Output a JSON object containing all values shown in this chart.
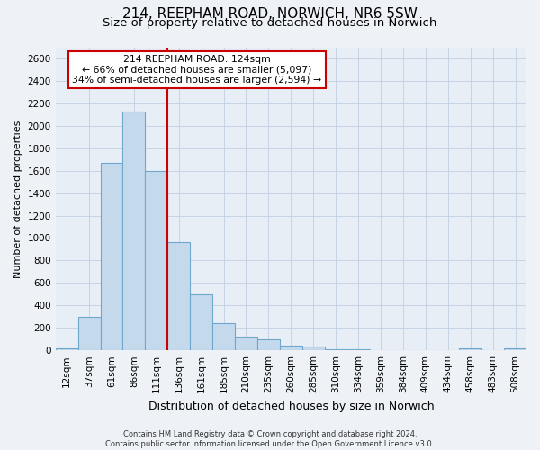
{
  "title": "214, REEPHAM ROAD, NORWICH, NR6 5SW",
  "subtitle": "Size of property relative to detached houses in Norwich",
  "xlabel": "Distribution of detached houses by size in Norwich",
  "ylabel": "Number of detached properties",
  "bar_labels": [
    "12sqm",
    "37sqm",
    "61sqm",
    "86sqm",
    "111sqm",
    "136sqm",
    "161sqm",
    "185sqm",
    "210sqm",
    "235sqm",
    "260sqm",
    "285sqm",
    "310sqm",
    "334sqm",
    "359sqm",
    "384sqm",
    "409sqm",
    "434sqm",
    "458sqm",
    "483sqm",
    "508sqm"
  ],
  "bar_values": [
    15,
    300,
    1670,
    2130,
    1600,
    960,
    500,
    240,
    125,
    100,
    45,
    30,
    10,
    10,
    5,
    5,
    5,
    5,
    20,
    5,
    15
  ],
  "bar_color": "#c5d9ec",
  "bar_edge_color": "#6fa8cc",
  "vline_x_idx": 5,
  "vline_color": "#cc0000",
  "annotation_box_text": "214 REEPHAM ROAD: 124sqm\n← 66% of detached houses are smaller (5,097)\n34% of semi-detached houses are larger (2,594) →",
  "ylim": [
    0,
    2700
  ],
  "yticks": [
    0,
    200,
    400,
    600,
    800,
    1000,
    1200,
    1400,
    1600,
    1800,
    2000,
    2200,
    2400,
    2600
  ],
  "footer_text": "Contains HM Land Registry data © Crown copyright and database right 2024.\nContains public sector information licensed under the Open Government Licence v3.0.",
  "bg_color": "#eef2f7",
  "plot_bg_color": "#e8eef5",
  "grid_color": "#c0cfe0",
  "title_fontsize": 11,
  "subtitle_fontsize": 9.5,
  "ylabel_fontsize": 8,
  "xlabel_fontsize": 9,
  "tick_fontsize": 7.5,
  "footer_fontsize": 6
}
